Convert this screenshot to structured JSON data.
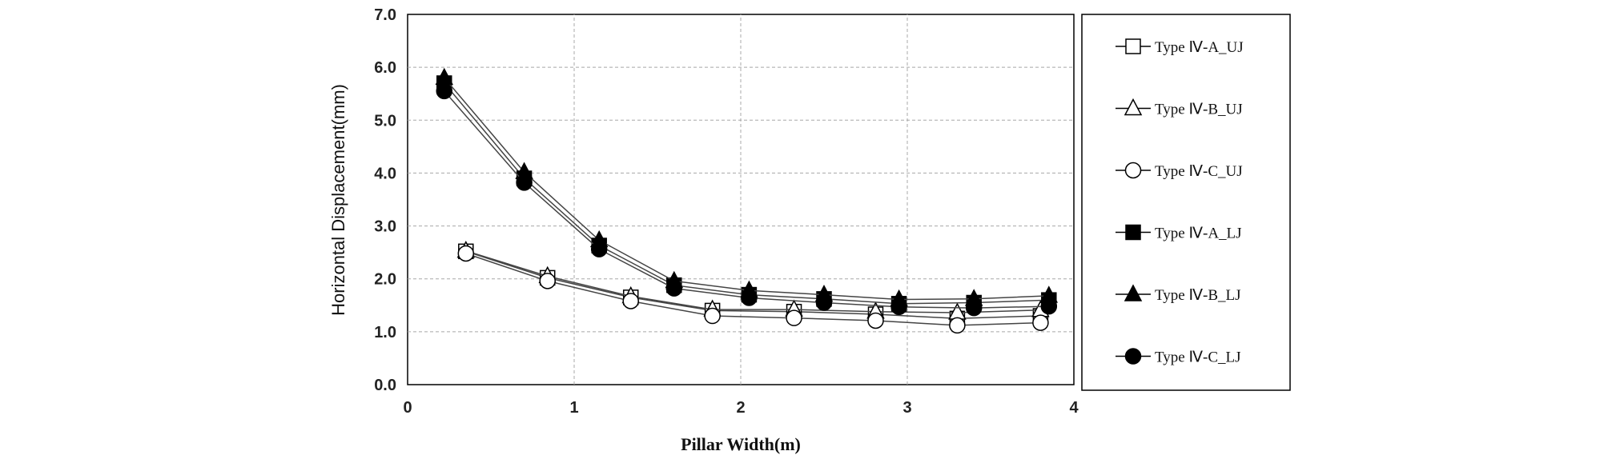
{
  "chart_data": {
    "type": "line",
    "xlabel": "Pillar Width(m)",
    "ylabel": "Horizontal Displacement(mm)",
    "xlim": [
      0,
      4
    ],
    "ylim": [
      0,
      7
    ],
    "xticks": [
      "0",
      "1",
      "2",
      "3",
      "4"
    ],
    "yticks": [
      "0.0",
      "1.0",
      "2.0",
      "3.0",
      "4.0",
      "5.0",
      "6.0",
      "7.0"
    ],
    "grid": true,
    "legend_position": "right",
    "series": [
      {
        "name": "Type  Ⅳ-A_UJ",
        "marker": "square-open",
        "x": [
          0.35,
          0.84,
          1.34,
          1.83,
          2.32,
          2.81,
          3.3,
          3.8
        ],
        "y": [
          2.52,
          2.02,
          1.65,
          1.4,
          1.38,
          1.33,
          1.25,
          1.3
        ]
      },
      {
        "name": "Type  Ⅳ-B_UJ",
        "marker": "triangle-open",
        "x": [
          0.35,
          0.84,
          1.34,
          1.83,
          2.32,
          2.81,
          3.3,
          3.8
        ],
        "y": [
          2.53,
          2.05,
          1.67,
          1.42,
          1.42,
          1.38,
          1.36,
          1.41
        ]
      },
      {
        "name": "Type  Ⅳ-C_UJ",
        "marker": "circle-open",
        "x": [
          0.35,
          0.84,
          1.34,
          1.83,
          2.32,
          2.81,
          3.3,
          3.8
        ],
        "y": [
          2.48,
          1.96,
          1.58,
          1.3,
          1.26,
          1.21,
          1.12,
          1.17
        ]
      },
      {
        "name": "Type  Ⅳ-A_LJ",
        "marker": "square-filled",
        "x": [
          0.22,
          0.7,
          1.15,
          1.6,
          2.05,
          2.5,
          2.95,
          3.4,
          3.85
        ],
        "y": [
          5.7,
          3.9,
          2.63,
          1.88,
          1.7,
          1.62,
          1.53,
          1.55,
          1.6
        ]
      },
      {
        "name": "Type  Ⅳ-B_LJ",
        "marker": "triangle-filled",
        "x": [
          0.22,
          0.7,
          1.15,
          1.6,
          2.05,
          2.5,
          2.95,
          3.4,
          3.85
        ],
        "y": [
          5.8,
          4.02,
          2.73,
          1.96,
          1.78,
          1.7,
          1.61,
          1.62,
          1.68
        ]
      },
      {
        "name": "Type  Ⅳ-C_LJ",
        "marker": "circle-filled",
        "x": [
          0.22,
          0.7,
          1.15,
          1.6,
          2.05,
          2.5,
          2.95,
          3.4,
          3.85
        ],
        "y": [
          5.55,
          3.82,
          2.56,
          1.82,
          1.64,
          1.55,
          1.47,
          1.45,
          1.48
        ]
      }
    ]
  }
}
